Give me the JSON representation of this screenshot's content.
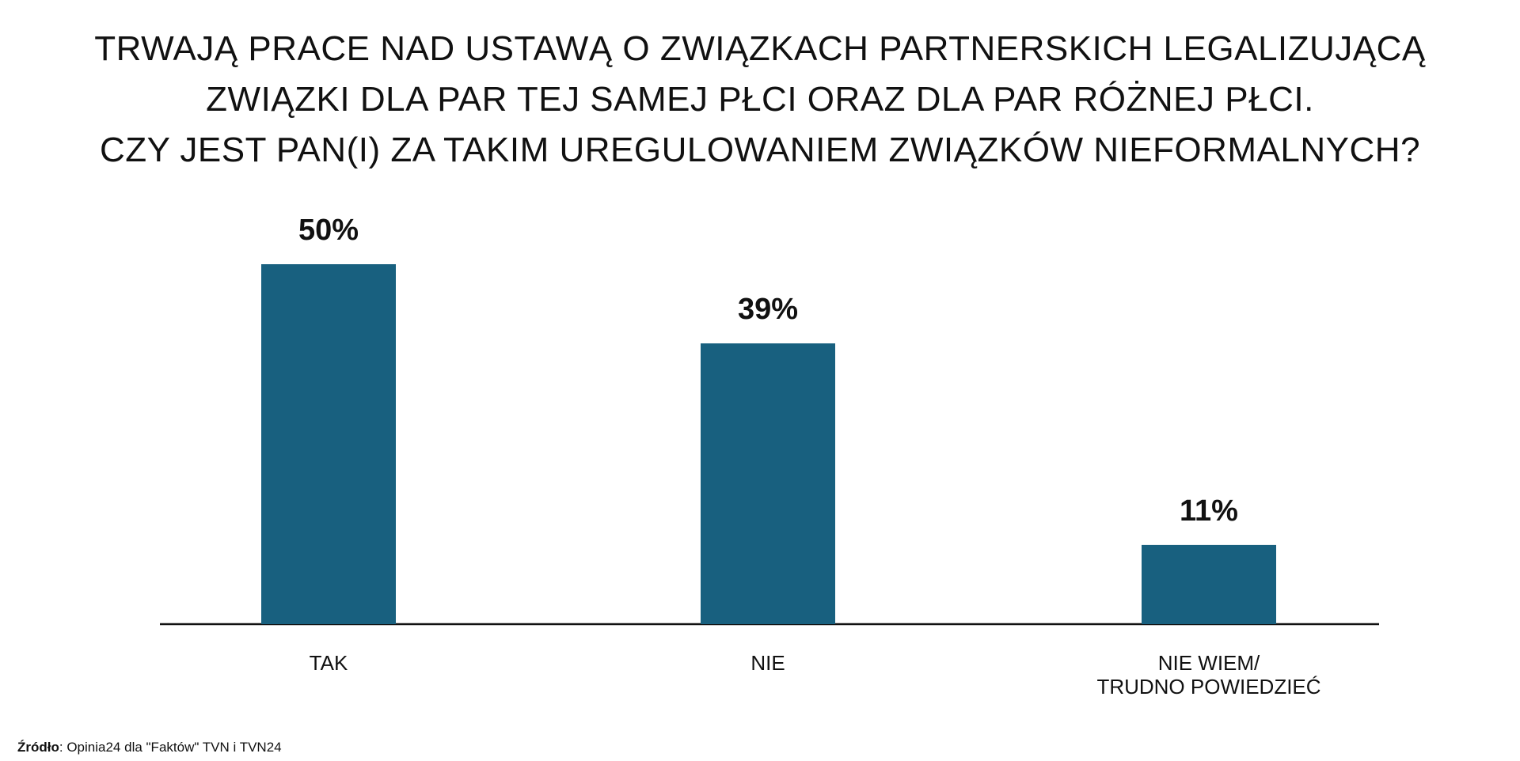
{
  "chart_data": {
    "type": "bar",
    "title": "TRWAJĄ PRACE NAD USTAWĄ O ZWIĄZKACH PARTNERSKICH LEGALIZUJĄCĄ\nZWIĄZKI DLA PAR TEJ SAMEJ PŁCI ORAZ DLA PAR RÓŻNEJ PŁCI.\nCZY JEST PAN(I) ZA TAKIM UREGULOWANIEM ZWIĄZKÓW NIEFORMALNYCH?",
    "categories": [
      "TAK",
      "NIE",
      "NIE WIEM/\nTRUDNO POWIEDZIEĆ"
    ],
    "values": [
      50,
      39,
      11
    ],
    "value_labels": [
      "50%",
      "39%",
      "11%"
    ],
    "color": "#18607f",
    "source_label": "Źródło",
    "source": ": Opinia24 dla \"Faktów\" TVN i TVN24"
  }
}
